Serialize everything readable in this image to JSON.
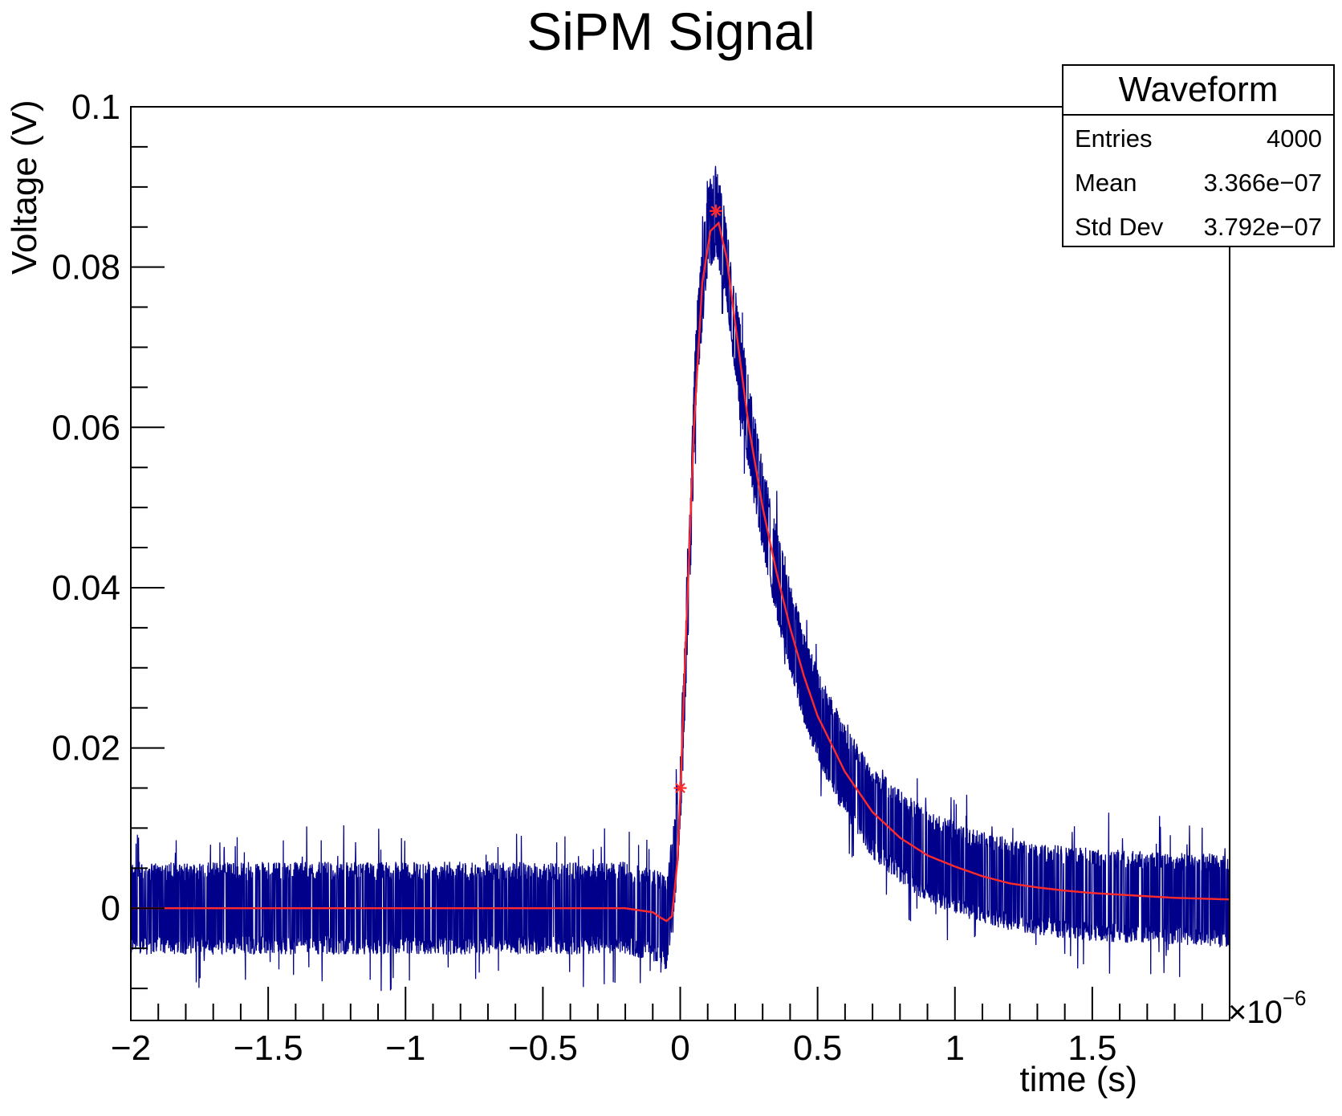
{
  "chart_data": {
    "type": "line",
    "title": "SiPM Signal",
    "xlabel": "time (s)",
    "ylabel": "Voltage (V)",
    "x_exponent_label": "×10",
    "x_exponent_power": "−6",
    "xlim": [
      -2,
      2
    ],
    "ylim": [
      -0.014,
      0.1
    ],
    "x_ticks": [
      -2,
      -1.5,
      -1,
      -0.5,
      0,
      0.5,
      1,
      1.5
    ],
    "x_tick_labels": [
      "−2",
      "−1.5",
      "−1",
      "−0.5",
      "0",
      "0.5",
      "1",
      "1.5"
    ],
    "y_ticks": [
      0,
      0.02,
      0.04,
      0.06,
      0.08,
      0.1
    ],
    "y_tick_labels": [
      "0",
      "0.02",
      "0.04",
      "0.06",
      "0.08",
      "0.1"
    ],
    "grid": false,
    "series": [
      {
        "color": "#00008b",
        "noise_band": 0.0058,
        "x": [
          -2,
          -1.5,
          -1,
          -0.5,
          -0.2,
          -0.08,
          -0.05,
          -0.02,
          0,
          0.03,
          0.06,
          0.1,
          0.13,
          0.16,
          0.2,
          0.25,
          0.3,
          0.35,
          0.4,
          0.45,
          0.5,
          0.6,
          0.7,
          0.8,
          0.9,
          1.0,
          1.1,
          1.2,
          1.3,
          1.4,
          1.5,
          1.6,
          1.7,
          1.8,
          1.9,
          2.0
        ],
        "y": [
          0.0,
          0.0,
          0.0,
          0.0,
          0.0,
          -0.001,
          -0.002,
          0.006,
          0.015,
          0.04,
          0.07,
          0.085,
          0.087,
          0.082,
          0.072,
          0.06,
          0.05,
          0.042,
          0.035,
          0.029,
          0.024,
          0.017,
          0.012,
          0.009,
          0.0065,
          0.005,
          0.0038,
          0.003,
          0.0025,
          0.002,
          0.0017,
          0.0015,
          0.0013,
          0.0012,
          0.0011,
          0.001
        ]
      },
      {
        "color": "#ff2a2a",
        "x": [
          -2,
          -1.5,
          -1,
          -0.5,
          -0.2,
          -0.1,
          -0.07,
          -0.05,
          -0.03,
          -0.01,
          0,
          0.02,
          0.05,
          0.08,
          0.11,
          0.14,
          0.17,
          0.2,
          0.25,
          0.3,
          0.35,
          0.4,
          0.45,
          0.5,
          0.6,
          0.7,
          0.8,
          0.9,
          1.0,
          1.1,
          1.2,
          1.3,
          1.4,
          1.5,
          1.6,
          1.7,
          1.8,
          1.9,
          2.0
        ],
        "y": [
          0.0,
          0.0,
          0.0,
          0.0,
          0.0,
          -0.0005,
          -0.0012,
          -0.0016,
          -0.001,
          0.006,
          0.014,
          0.033,
          0.06,
          0.078,
          0.0845,
          0.0855,
          0.081,
          0.073,
          0.06,
          0.05,
          0.042,
          0.035,
          0.029,
          0.024,
          0.017,
          0.012,
          0.0088,
          0.0066,
          0.0052,
          0.004,
          0.0031,
          0.0026,
          0.0022,
          0.0019,
          0.0017,
          0.0015,
          0.0013,
          0.0012,
          0.0011
        ]
      }
    ],
    "markers": [
      {
        "x": 0.0,
        "y": 0.015,
        "color": "#ff2a2a"
      },
      {
        "x": 0.13,
        "y": 0.087,
        "color": "#ff2a2a"
      }
    ]
  },
  "stats_box": {
    "title": "Waveform",
    "rows": [
      {
        "label": "Entries",
        "value": "4000"
      },
      {
        "label": "Mean",
        "value": "3.366e−07"
      },
      {
        "label": "Std Dev",
        "value": "3.792e−07"
      }
    ]
  }
}
